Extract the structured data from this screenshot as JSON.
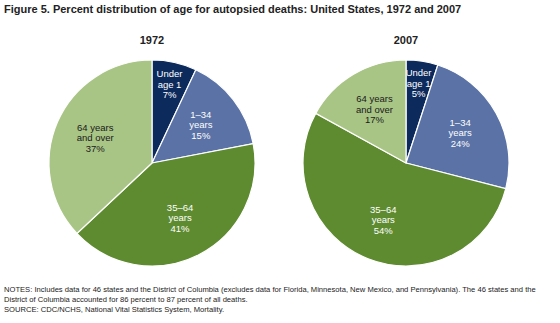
{
  "figure": {
    "title": "Figure 5. Percent distribution of age for autopsied deaths: United States, 1972 and 2007",
    "notes": [
      "NOTES: Includes data for 46 states and the District of Columbia (excludes data for Florida, Minnesota, New Mexico, and Pennsylvania). The 46 states and the",
      "District of Columbia accounted for 86 percent to 87 percent of all deaths."
    ],
    "source": "SOURCE: CDC/NCHS, National Vital Statistics System, Mortality."
  },
  "chart_data": [
    {
      "type": "pie",
      "title": "1972",
      "categories": [
        "Under age 1",
        "1–34 years",
        "35–64 years",
        "64 years and over"
      ],
      "values": [
        7,
        15,
        41,
        37
      ],
      "value_labels": [
        "7%",
        "15%",
        "41%",
        "37%"
      ],
      "colors": [
        "#0c2a5c",
        "#5a72a6",
        "#5e8b30",
        "#a9c586"
      ],
      "data_labels": true
    },
    {
      "type": "pie",
      "title": "2007",
      "categories": [
        "Under age 1",
        "1–34 years",
        "35–64 years",
        "64 years and over"
      ],
      "values": [
        5,
        24,
        54,
        17
      ],
      "value_labels": [
        "5%",
        "24%",
        "54%",
        "17%"
      ],
      "colors": [
        "#0c2a5c",
        "#5a72a6",
        "#5e8b30",
        "#a9c586"
      ],
      "data_labels": true
    }
  ]
}
